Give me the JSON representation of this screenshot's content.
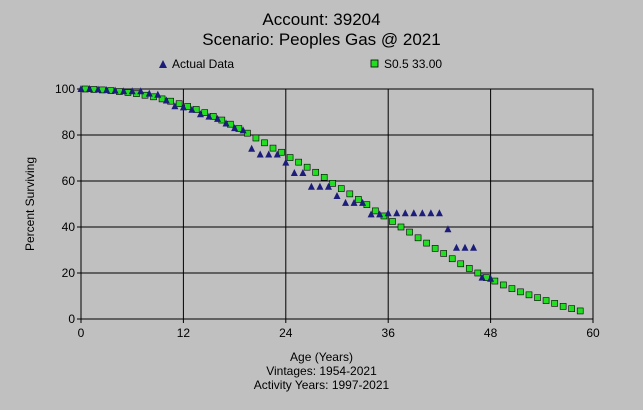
{
  "header": {
    "account": "Account: 39204",
    "scenario": "Scenario: Peoples Gas @ 2021"
  },
  "legend": {
    "actual_label": "Actual Data",
    "model_label": "S0.5 33.00"
  },
  "footer": {
    "vintages": "Vintages: 1954-2021",
    "activity_years": "Activity Years: 1997-2021"
  },
  "colors": {
    "background": "#c0c0c0",
    "actual": "#1c1c7a",
    "model": "#22dd22",
    "grid": "#000000"
  },
  "chart_data": {
    "type": "scatter",
    "xlabel": "Age (Years)",
    "ylabel": "Percent Surviving",
    "xlim": [
      0,
      60
    ],
    "ylim": [
      0,
      100
    ],
    "xticks": [
      0,
      12,
      24,
      36,
      48,
      60
    ],
    "yticks": [
      0,
      20,
      40,
      60,
      80,
      100
    ],
    "grid": true,
    "legend_position": "top",
    "series": [
      {
        "name": "Actual Data",
        "marker": "triangle",
        "x": [
          0,
          1,
          2,
          3,
          4,
          5,
          6,
          7,
          8,
          9,
          10,
          11,
          12,
          13,
          14,
          15,
          16,
          17,
          18,
          19,
          20,
          21,
          22,
          23,
          24,
          25,
          26,
          27,
          28,
          29,
          30,
          31,
          32,
          33,
          34,
          35,
          36,
          37,
          38,
          39,
          40,
          41,
          42,
          43,
          44,
          45,
          46,
          47,
          48
        ],
        "y": [
          100,
          100,
          99.8,
          99.5,
          99.3,
          99,
          99,
          99,
          98,
          97.5,
          95,
          92.5,
          92,
          91,
          89,
          88,
          87,
          85,
          83,
          82,
          74,
          71.5,
          71.5,
          71.5,
          68,
          63.5,
          63.5,
          57.5,
          57.5,
          57.5,
          53.5,
          50.5,
          50.5,
          50.5,
          45.5,
          45.5,
          46,
          46,
          46,
          46,
          46,
          46,
          46,
          39,
          31,
          31,
          31,
          18,
          17.5
        ]
      },
      {
        "name": "S0.5 33.00",
        "marker": "square",
        "x": [
          0.5,
          1.5,
          2.5,
          3.5,
          4.5,
          5.5,
          6.5,
          7.5,
          8.5,
          9.5,
          10.5,
          11.5,
          12.5,
          13.5,
          14.5,
          15.5,
          16.5,
          17.5,
          18.5,
          19.5,
          20.5,
          21.5,
          22.5,
          23.5,
          24.5,
          25.5,
          26.5,
          27.5,
          28.5,
          29.5,
          30.5,
          31.5,
          32.5,
          33.5,
          34.5,
          35.5,
          36.5,
          37.5,
          38.5,
          39.5,
          40.5,
          41.5,
          42.5,
          43.5,
          44.5,
          45.5,
          46.5,
          47.5,
          48.5,
          49.5,
          50.5,
          51.5,
          52.5,
          53.5,
          54.5,
          55.5,
          56.5,
          57.5,
          58.5
        ],
        "y": [
          100,
          99.8,
          99.6,
          99.3,
          98.9,
          98.5,
          98,
          97.3,
          96.6,
          95.7,
          94.7,
          93.6,
          92.4,
          91.1,
          89.7,
          88.1,
          86.5,
          84.7,
          82.8,
          80.8,
          78.7,
          76.6,
          74.3,
          72.5,
          70.2,
          68.2,
          66,
          63.8,
          61.6,
          59,
          56.7,
          54.4,
          52,
          49.7,
          47,
          44.8,
          42.4,
          40,
          37.8,
          35.3,
          33,
          30.7,
          28.5,
          26.2,
          24,
          22,
          20,
          18,
          16.5,
          14.8,
          13.2,
          11.8,
          10.5,
          9.3,
          8,
          6.8,
          5.5,
          4.5,
          3.5
        ]
      }
    ]
  }
}
